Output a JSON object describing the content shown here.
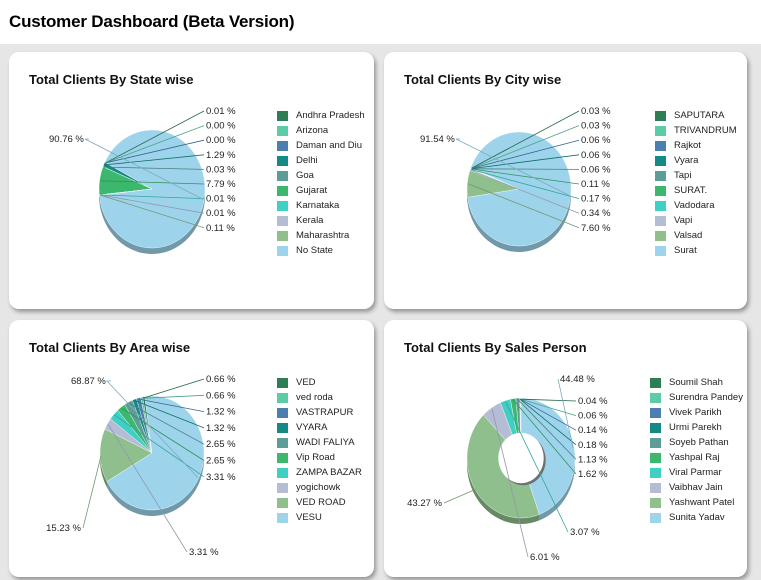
{
  "page": {
    "title": "Customer Dashboard (Beta Version)"
  },
  "chart_data": [
    {
      "type": "pie",
      "title": "Total Clients By State wise",
      "legend_position": "right",
      "categories": [
        "Andhra Pradesh",
        "Arizona",
        "Daman and Diu",
        "Delhi",
        "Goa",
        "Gujarat",
        "Karnataka",
        "Kerala",
        "Maharashtra",
        "No State"
      ],
      "values": [
        0.01,
        0.0,
        0.0,
        1.29,
        0.03,
        7.79,
        0.01,
        0.01,
        0.11,
        90.76
      ],
      "labels": [
        "0.01 %",
        "0.00 %",
        "0.00 %",
        "1.29 %",
        "0.03 %",
        "7.79 %",
        "0.01 %",
        "0.01 %",
        "0.11 %",
        "90.76 %"
      ],
      "colors": [
        "#2e7d55",
        "#5dcca6",
        "#4a7fb0",
        "#138a83",
        "#5e9c98",
        "#3cb76e",
        "#40cfc3",
        "#b5bdd6",
        "#8fbf8c",
        "#9dd4ec"
      ]
    },
    {
      "type": "pie",
      "title": "Total Clients By City wise",
      "legend_position": "right",
      "categories": [
        "SAPUTARA",
        "TRIVANDRUM",
        "Rajkot",
        "Vyara",
        "Tapi",
        "SURAT.",
        "Vadodara",
        "Vapi",
        "Valsad",
        "Surat"
      ],
      "values": [
        0.03,
        0.03,
        0.06,
        0.06,
        0.06,
        0.11,
        0.17,
        0.34,
        7.6,
        91.54
      ],
      "labels": [
        "0.03 %",
        "0.03 %",
        "0.06 %",
        "0.06 %",
        "0.06 %",
        "0.11 %",
        "0.17 %",
        "0.34 %",
        "7.60 %",
        "91.54 %"
      ],
      "colors": [
        "#2e7d55",
        "#5dcca6",
        "#4a7fb0",
        "#138a83",
        "#5e9c98",
        "#3cb76e",
        "#40cfc3",
        "#b5bdd6",
        "#8fbf8c",
        "#9dd4ec"
      ]
    },
    {
      "type": "pie",
      "title": "Total Clients By Area wise",
      "legend_position": "right",
      "categories": [
        "VED",
        "ved roda",
        "VASTRAPUR",
        "VYARA",
        "WADI FALIYA",
        "Vip Road",
        "ZAMPA BAZAR",
        "yogichowk",
        "VED ROAD",
        "VESU"
      ],
      "values": [
        0.66,
        0.66,
        1.32,
        1.32,
        2.65,
        2.65,
        3.31,
        3.31,
        15.23,
        68.87
      ],
      "labels": [
        "0.66 %",
        "0.66 %",
        "1.32 %",
        "1.32 %",
        "2.65 %",
        "2.65 %",
        "3.31 %",
        "3.31 %",
        "15.23 %",
        "68.87 %"
      ],
      "colors": [
        "#2e7d55",
        "#5dcca6",
        "#4a7fb0",
        "#138a83",
        "#5e9c98",
        "#3cb76e",
        "#40cfc3",
        "#b5bdd6",
        "#8fbf8c",
        "#9dd4ec"
      ]
    },
    {
      "type": "pie",
      "donut": true,
      "title": "Total Clients By Sales Person",
      "legend_position": "right",
      "categories": [
        "Soumil Shah",
        "Surendra Pandey",
        "Vivek Parikh",
        "Urmi Parekh",
        "Soyeb Pathan",
        "Yashpal Raj",
        "Viral Parmar",
        "Vaibhav Jain",
        "Yashwant Patel",
        "Sunita Yadav"
      ],
      "values": [
        0.04,
        0.06,
        0.14,
        0.18,
        1.13,
        1.62,
        3.07,
        6.01,
        43.27,
        44.48
      ],
      "labels": [
        "0.04 %",
        "0.06 %",
        "0.14 %",
        "0.18 %",
        "1.13 %",
        "1.62 %",
        "3.07 %",
        "6.01 %",
        "43.27 %",
        "44.48 %"
      ],
      "colors": [
        "#2e7d55",
        "#5dcca6",
        "#4a7fb0",
        "#138a83",
        "#5e9c98",
        "#3cb76e",
        "#40cfc3",
        "#b5bdd6",
        "#8fbf8c",
        "#9dd4ec"
      ]
    }
  ]
}
